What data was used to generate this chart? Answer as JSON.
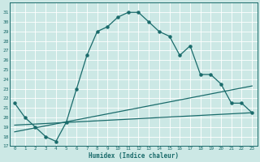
{
  "xlabel": "Humidex (Indice chaleur)",
  "bg_color": "#cce8e5",
  "grid_color": "#b0d8d4",
  "line_color": "#1a6b6b",
  "xlim": [
    -0.5,
    23.5
  ],
  "ylim": [
    17,
    32
  ],
  "xticks": [
    0,
    1,
    2,
    3,
    4,
    5,
    6,
    7,
    8,
    9,
    10,
    11,
    12,
    13,
    14,
    15,
    16,
    17,
    18,
    19,
    20,
    21,
    22,
    23
  ],
  "yticks": [
    17,
    18,
    19,
    20,
    21,
    22,
    23,
    24,
    25,
    26,
    27,
    28,
    29,
    30,
    31
  ],
  "curve1_x": [
    0,
    1,
    2,
    3,
    4,
    5,
    6,
    7,
    8,
    9,
    10,
    11,
    12,
    13,
    14,
    15,
    16,
    17,
    18,
    19,
    20,
    21,
    22,
    23
  ],
  "curve1_y": [
    21.5,
    20.0,
    19.0,
    18.0,
    17.5,
    19.5,
    23.0,
    26.5,
    29.0,
    29.5,
    30.5,
    31.0,
    31.0,
    30.0,
    29.0,
    28.5,
    26.5,
    27.5,
    24.5,
    24.5,
    23.5,
    21.5,
    21.5,
    20.5
  ],
  "line1_x": [
    0,
    23
  ],
  "line1_y": [
    19.2,
    20.5
  ],
  "line2_x": [
    0,
    23
  ],
  "line2_y": [
    18.5,
    23.3
  ]
}
